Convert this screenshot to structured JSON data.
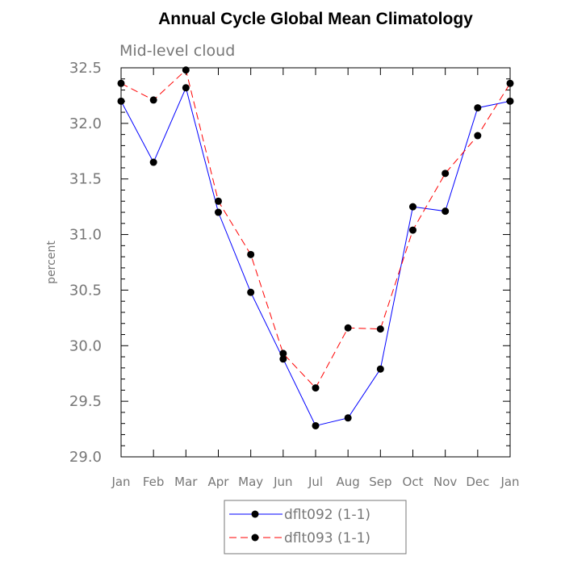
{
  "chart_data": {
    "type": "line",
    "title": "Annual Cycle Global Mean Climatology",
    "subtitle": "Mid-level cloud",
    "xlabel": "",
    "ylabel": "percent",
    "categories": [
      "Jan",
      "Feb",
      "Mar",
      "Apr",
      "May",
      "Jun",
      "Jul",
      "Aug",
      "Sep",
      "Oct",
      "Nov",
      "Dec",
      "Jan"
    ],
    "ylim": [
      29.0,
      32.5
    ],
    "yticks": [
      "29.0",
      "29.5",
      "30.0",
      "30.5",
      "31.0",
      "31.5",
      "32.0",
      "32.5"
    ],
    "grid": false,
    "legend_position": "bottom-center",
    "series": [
      {
        "name": "dflt092 (1-1)",
        "color": "#0000ff",
        "line_style": "solid",
        "marker": "filled-circle",
        "values": [
          32.2,
          31.65,
          32.32,
          31.2,
          30.48,
          29.88,
          29.28,
          29.35,
          29.79,
          31.25,
          31.21,
          32.14,
          32.2
        ]
      },
      {
        "name": "dflt093 (1-1)",
        "color": "#ff0000",
        "line_style": "dashed",
        "marker": "filled-circle",
        "values": [
          32.36,
          32.21,
          32.48,
          31.3,
          30.82,
          29.93,
          29.62,
          30.16,
          30.15,
          31.04,
          31.55,
          31.89,
          32.36
        ]
      }
    ]
  }
}
